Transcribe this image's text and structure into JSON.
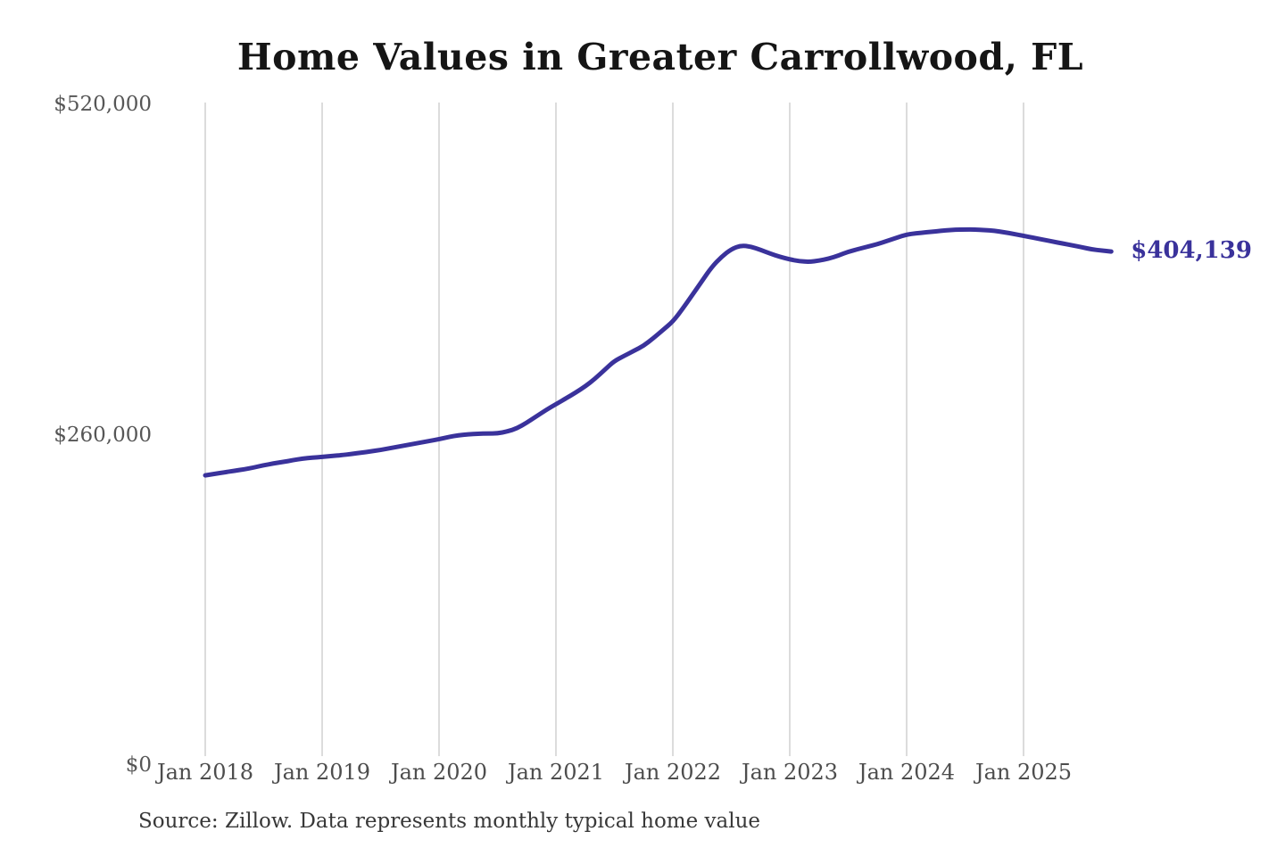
{
  "title": "Home Values in Greater Carrollwood, FL",
  "source_note": "Source: Zillow. Data represents monthly typical home value",
  "end_label": "$404,139",
  "colors": {
    "line": "#3a329b",
    "grid": "#c9c9c9",
    "title_text": "#151515",
    "y_axis_text": "#565656",
    "x_axis_text": "#4d4d4d",
    "source_text": "#383838"
  },
  "chart_data": {
    "type": "line",
    "title": "Home Values in Greater Carrollwood, FL",
    "xlabel": "",
    "ylabel": "",
    "x_tick_labels": [
      "Jan 2018",
      "Jan 2019",
      "Jan 2020",
      "Jan 2021",
      "Jan 2022",
      "Jan 2023",
      "Jan 2024",
      "Jan 2025"
    ],
    "y_ticks": [
      {
        "label": "$520,000",
        "value": 520000
      },
      {
        "label": "$260,000",
        "value": 260000
      },
      {
        "label": "$0",
        "value": 0
      }
    ],
    "ylim": [
      0,
      520000
    ],
    "grid": "vertical-only",
    "legend": "none",
    "x_start": "2018-01",
    "x_freq": "monthly",
    "series": [
      {
        "name": "Monthly typical home value",
        "color": "#3a329b",
        "final_value": 404139,
        "final_value_label": "$404,139",
        "values": [
          228000,
          229200,
          230400,
          231600,
          232800,
          234200,
          236000,
          237300,
          238600,
          239900,
          241200,
          241900,
          242500,
          243200,
          243900,
          244800,
          245800,
          246900,
          248000,
          249400,
          250800,
          252200,
          253600,
          255000,
          256500,
          258200,
          259500,
          260300,
          260800,
          261000,
          261000,
          262500,
          265000,
          269500,
          274500,
          279500,
          284000,
          288500,
          293000,
          298000,
          304000,
          311000,
          318000,
          322000,
          326000,
          330000,
          336000,
          342500,
          349000,
          359000,
          370000,
          381000,
          392000,
          400000,
          406000,
          409000,
          408000,
          405500,
          402500,
          400000,
          398000,
          396500,
          396000,
          397000,
          398500,
          401000,
          404000,
          406000,
          408000,
          410000,
          412500,
          415000,
          417500,
          418500,
          419300,
          420000,
          420800,
          421300,
          421500,
          421400,
          421000,
          420500,
          419300,
          418000,
          416500,
          415000,
          413500,
          412000,
          410500,
          409000,
          407500,
          405800,
          405000,
          404139
        ]
      }
    ]
  }
}
